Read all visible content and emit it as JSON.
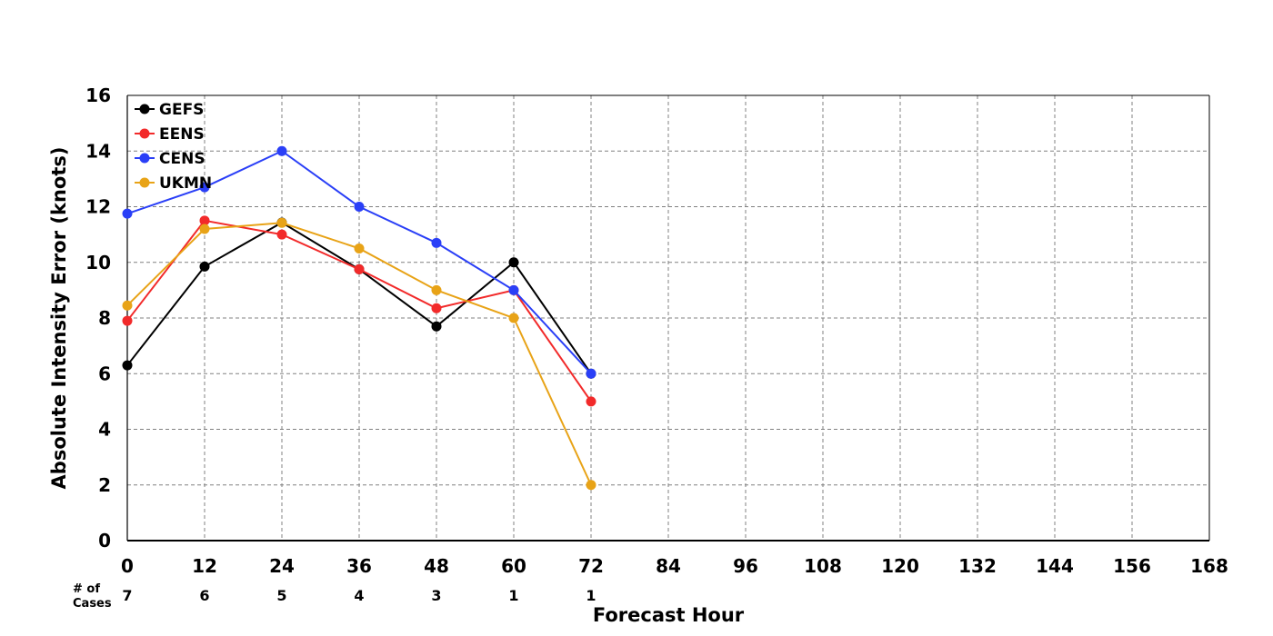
{
  "chart_data": {
    "type": "line",
    "xlabel": "Forecast Hour",
    "ylabel": "Absolute Intensity Error (knots)",
    "xlim": [
      0,
      168
    ],
    "ylim": [
      0,
      16
    ],
    "x_ticks": [
      "0",
      "12",
      "24",
      "36",
      "48",
      "60",
      "72",
      "84",
      "96",
      "108",
      "120",
      "132",
      "144",
      "156",
      "168"
    ],
    "y_ticks": [
      "0",
      "2",
      "4",
      "6",
      "8",
      "10",
      "12",
      "14",
      "16"
    ],
    "grid": true,
    "legend_position": "top-left",
    "cases_label_line1": "# of",
    "cases_label_line2": "Cases",
    "cases": [
      {
        "x": 0,
        "n": "7"
      },
      {
        "x": 12,
        "n": "6"
      },
      {
        "x": 24,
        "n": "5"
      },
      {
        "x": 36,
        "n": "4"
      },
      {
        "x": 48,
        "n": "3"
      },
      {
        "x": 60,
        "n": "1"
      },
      {
        "x": 72,
        "n": "1"
      }
    ],
    "series": [
      {
        "name": "GEFS",
        "color": "#000000",
        "x": [
          0,
          12,
          24,
          36,
          48,
          60,
          72
        ],
        "values": [
          6.3,
          9.85,
          11.43,
          9.75,
          7.7,
          10.0,
          6.0
        ]
      },
      {
        "name": "EENS",
        "color": "#f22a2a",
        "x": [
          0,
          12,
          24,
          36,
          48,
          60,
          72
        ],
        "values": [
          7.9,
          11.5,
          11.0,
          9.75,
          8.35,
          9.0,
          5.0
        ]
      },
      {
        "name": "CENS",
        "color": "#2a3ff7",
        "x": [
          0,
          12,
          24,
          36,
          48,
          60,
          72
        ],
        "values": [
          11.75,
          12.7,
          14.0,
          12.0,
          10.7,
          9.0,
          6.0
        ]
      },
      {
        "name": "UKMN",
        "color": "#e8a317",
        "x": [
          0,
          12,
          24,
          36,
          48,
          60,
          72
        ],
        "values": [
          8.45,
          11.2,
          11.42,
          10.5,
          9.0,
          8.0,
          2.0
        ]
      }
    ]
  }
}
